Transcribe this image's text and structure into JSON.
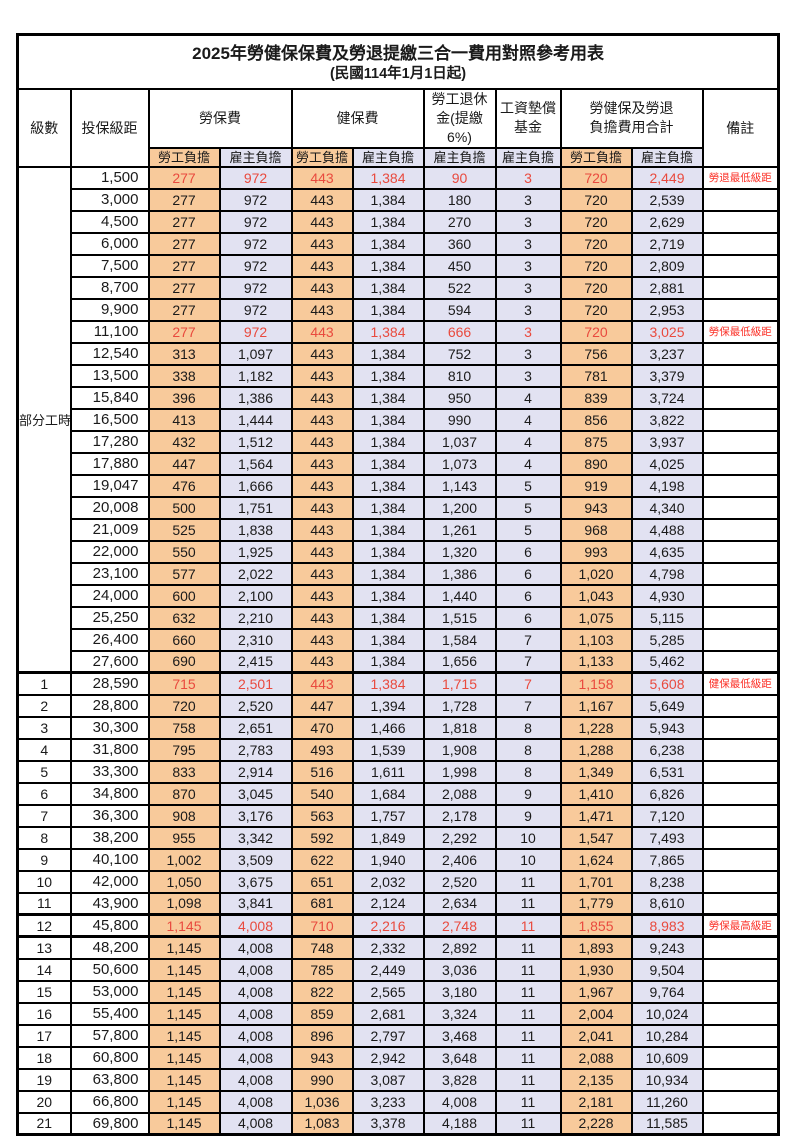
{
  "title": {
    "line1": "2025年勞健保保費及勞退提繳三合一費用對照參考用表",
    "line2": "(民國114年1月1日起)"
  },
  "colors": {
    "employee_bg": "#f8ca9b",
    "employer_bg": "#e2e2f2",
    "highlight_red": "#e94a3e",
    "note_red": "#fb2f26",
    "border": "#000000"
  },
  "table": {
    "header": {
      "level": "級數",
      "salary": "投保級距",
      "labor_group": "勞保費",
      "health_group": "健保費",
      "pension_group": "勞工退休\n金(提繳6%)",
      "wage_fund_group": "工資墊償\n基金",
      "total_group": "勞健保及勞退\n負擔費用合計",
      "note": "備註",
      "employee": "勞工負擔",
      "employer": "雇主負擔"
    },
    "part_time_label": "部分工時",
    "part_time_rowspan": 23,
    "rows": [
      {
        "level": "",
        "salary": "1,500",
        "v": [
          "277",
          "972",
          "443",
          "1,384",
          "90",
          "3",
          "720",
          "2,449"
        ],
        "note": "勞退最低級距",
        "hl": true
      },
      {
        "level": "",
        "salary": "3,000",
        "v": [
          "277",
          "972",
          "443",
          "1,384",
          "180",
          "3",
          "720",
          "2,539"
        ],
        "note": ""
      },
      {
        "level": "",
        "salary": "4,500",
        "v": [
          "277",
          "972",
          "443",
          "1,384",
          "270",
          "3",
          "720",
          "2,629"
        ],
        "note": ""
      },
      {
        "level": "",
        "salary": "6,000",
        "v": [
          "277",
          "972",
          "443",
          "1,384",
          "360",
          "3",
          "720",
          "2,719"
        ],
        "note": ""
      },
      {
        "level": "",
        "salary": "7,500",
        "v": [
          "277",
          "972",
          "443",
          "1,384",
          "450",
          "3",
          "720",
          "2,809"
        ],
        "note": ""
      },
      {
        "level": "",
        "salary": "8,700",
        "v": [
          "277",
          "972",
          "443",
          "1,384",
          "522",
          "3",
          "720",
          "2,881"
        ],
        "note": ""
      },
      {
        "level": "",
        "salary": "9,900",
        "v": [
          "277",
          "972",
          "443",
          "1,384",
          "594",
          "3",
          "720",
          "2,953"
        ],
        "note": ""
      },
      {
        "level": "",
        "salary": "11,100",
        "v": [
          "277",
          "972",
          "443",
          "1,384",
          "666",
          "3",
          "720",
          "3,025"
        ],
        "note": "勞保最低級距",
        "hl": true
      },
      {
        "level": "",
        "salary": "12,540",
        "v": [
          "313",
          "1,097",
          "443",
          "1,384",
          "752",
          "3",
          "756",
          "3,237"
        ],
        "note": ""
      },
      {
        "level": "",
        "salary": "13,500",
        "v": [
          "338",
          "1,182",
          "443",
          "1,384",
          "810",
          "3",
          "781",
          "3,379"
        ],
        "note": ""
      },
      {
        "level": "",
        "salary": "15,840",
        "v": [
          "396",
          "1,386",
          "443",
          "1,384",
          "950",
          "4",
          "839",
          "3,724"
        ],
        "note": ""
      },
      {
        "level": "",
        "salary": "16,500",
        "v": [
          "413",
          "1,444",
          "443",
          "1,384",
          "990",
          "4",
          "856",
          "3,822"
        ],
        "note": ""
      },
      {
        "level": "",
        "salary": "17,280",
        "v": [
          "432",
          "1,512",
          "443",
          "1,384",
          "1,037",
          "4",
          "875",
          "3,937"
        ],
        "note": ""
      },
      {
        "level": "",
        "salary": "17,880",
        "v": [
          "447",
          "1,564",
          "443",
          "1,384",
          "1,073",
          "4",
          "890",
          "4,025"
        ],
        "note": ""
      },
      {
        "level": "",
        "salary": "19,047",
        "v": [
          "476",
          "1,666",
          "443",
          "1,384",
          "1,143",
          "5",
          "919",
          "4,198"
        ],
        "note": ""
      },
      {
        "level": "",
        "salary": "20,008",
        "v": [
          "500",
          "1,751",
          "443",
          "1,384",
          "1,200",
          "5",
          "943",
          "4,340"
        ],
        "note": ""
      },
      {
        "level": "",
        "salary": "21,009",
        "v": [
          "525",
          "1,838",
          "443",
          "1,384",
          "1,261",
          "5",
          "968",
          "4,488"
        ],
        "note": ""
      },
      {
        "level": "",
        "salary": "22,000",
        "v": [
          "550",
          "1,925",
          "443",
          "1,384",
          "1,320",
          "6",
          "993",
          "4,635"
        ],
        "note": ""
      },
      {
        "level": "",
        "salary": "23,100",
        "v": [
          "577",
          "2,022",
          "443",
          "1,384",
          "1,386",
          "6",
          "1,020",
          "4,798"
        ],
        "note": ""
      },
      {
        "level": "",
        "salary": "24,000",
        "v": [
          "600",
          "2,100",
          "443",
          "1,384",
          "1,440",
          "6",
          "1,043",
          "4,930"
        ],
        "note": ""
      },
      {
        "level": "",
        "salary": "25,250",
        "v": [
          "632",
          "2,210",
          "443",
          "1,384",
          "1,515",
          "6",
          "1,075",
          "5,115"
        ],
        "note": ""
      },
      {
        "level": "",
        "salary": "26,400",
        "v": [
          "660",
          "2,310",
          "443",
          "1,384",
          "1,584",
          "7",
          "1,103",
          "5,285"
        ],
        "note": ""
      },
      {
        "level": "",
        "salary": "27,600",
        "v": [
          "690",
          "2,415",
          "443",
          "1,384",
          "1,656",
          "7",
          "1,133",
          "5,462"
        ],
        "note": ""
      },
      {
        "level": "1",
        "salary": "28,590",
        "v": [
          "715",
          "2,501",
          "443",
          "1,384",
          "1,715",
          "7",
          "1,158",
          "5,608"
        ],
        "note": "健保最低級距",
        "hl": true,
        "tt": true
      },
      {
        "level": "2",
        "salary": "28,800",
        "v": [
          "720",
          "2,520",
          "447",
          "1,394",
          "1,728",
          "7",
          "1,167",
          "5,649"
        ],
        "note": ""
      },
      {
        "level": "3",
        "salary": "30,300",
        "v": [
          "758",
          "2,651",
          "470",
          "1,466",
          "1,818",
          "8",
          "1,228",
          "5,943"
        ],
        "note": ""
      },
      {
        "level": "4",
        "salary": "31,800",
        "v": [
          "795",
          "2,783",
          "493",
          "1,539",
          "1,908",
          "8",
          "1,288",
          "6,238"
        ],
        "note": ""
      },
      {
        "level": "5",
        "salary": "33,300",
        "v": [
          "833",
          "2,914",
          "516",
          "1,611",
          "1,998",
          "8",
          "1,349",
          "6,531"
        ],
        "note": ""
      },
      {
        "level": "6",
        "salary": "34,800",
        "v": [
          "870",
          "3,045",
          "540",
          "1,684",
          "2,088",
          "9",
          "1,410",
          "6,826"
        ],
        "note": ""
      },
      {
        "level": "7",
        "salary": "36,300",
        "v": [
          "908",
          "3,176",
          "563",
          "1,757",
          "2,178",
          "9",
          "1,471",
          "7,120"
        ],
        "note": ""
      },
      {
        "level": "8",
        "salary": "38,200",
        "v": [
          "955",
          "3,342",
          "592",
          "1,849",
          "2,292",
          "10",
          "1,547",
          "7,493"
        ],
        "note": ""
      },
      {
        "level": "9",
        "salary": "40,100",
        "v": [
          "1,002",
          "3,509",
          "622",
          "1,940",
          "2,406",
          "10",
          "1,624",
          "7,865"
        ],
        "note": ""
      },
      {
        "level": "10",
        "salary": "42,000",
        "v": [
          "1,050",
          "3,675",
          "651",
          "2,032",
          "2,520",
          "11",
          "1,701",
          "8,238"
        ],
        "note": ""
      },
      {
        "level": "11",
        "salary": "43,900",
        "v": [
          "1,098",
          "3,841",
          "681",
          "2,124",
          "2,634",
          "11",
          "1,779",
          "8,610"
        ],
        "note": ""
      },
      {
        "level": "12",
        "salary": "45,800",
        "v": [
          "1,145",
          "4,008",
          "710",
          "2,216",
          "2,748",
          "11",
          "1,855",
          "8,983"
        ],
        "note": "勞保最高級距",
        "hl": true,
        "tt": true,
        "tb": true
      },
      {
        "level": "13",
        "salary": "48,200",
        "v": [
          "1,145",
          "4,008",
          "748",
          "2,332",
          "2,892",
          "11",
          "1,893",
          "9,243"
        ],
        "note": ""
      },
      {
        "level": "14",
        "salary": "50,600",
        "v": [
          "1,145",
          "4,008",
          "785",
          "2,449",
          "3,036",
          "11",
          "1,930",
          "9,504"
        ],
        "note": ""
      },
      {
        "level": "15",
        "salary": "53,000",
        "v": [
          "1,145",
          "4,008",
          "822",
          "2,565",
          "3,180",
          "11",
          "1,967",
          "9,764"
        ],
        "note": ""
      },
      {
        "level": "16",
        "salary": "55,400",
        "v": [
          "1,145",
          "4,008",
          "859",
          "2,681",
          "3,324",
          "11",
          "2,004",
          "10,024"
        ],
        "note": ""
      },
      {
        "level": "17",
        "salary": "57,800",
        "v": [
          "1,145",
          "4,008",
          "896",
          "2,797",
          "3,468",
          "11",
          "2,041",
          "10,284"
        ],
        "note": ""
      },
      {
        "level": "18",
        "salary": "60,800",
        "v": [
          "1,145",
          "4,008",
          "943",
          "2,942",
          "3,648",
          "11",
          "2,088",
          "10,609"
        ],
        "note": ""
      },
      {
        "level": "19",
        "salary": "63,800",
        "v": [
          "1,145",
          "4,008",
          "990",
          "3,087",
          "3,828",
          "11",
          "2,135",
          "10,934"
        ],
        "note": ""
      },
      {
        "level": "20",
        "salary": "66,800",
        "v": [
          "1,145",
          "4,008",
          "1,036",
          "3,233",
          "4,008",
          "11",
          "2,181",
          "11,260"
        ],
        "note": ""
      },
      {
        "level": "21",
        "salary": "69,800",
        "v": [
          "1,145",
          "4,008",
          "1,083",
          "3,378",
          "4,188",
          "11",
          "2,228",
          "11,585"
        ],
        "note": ""
      }
    ]
  }
}
